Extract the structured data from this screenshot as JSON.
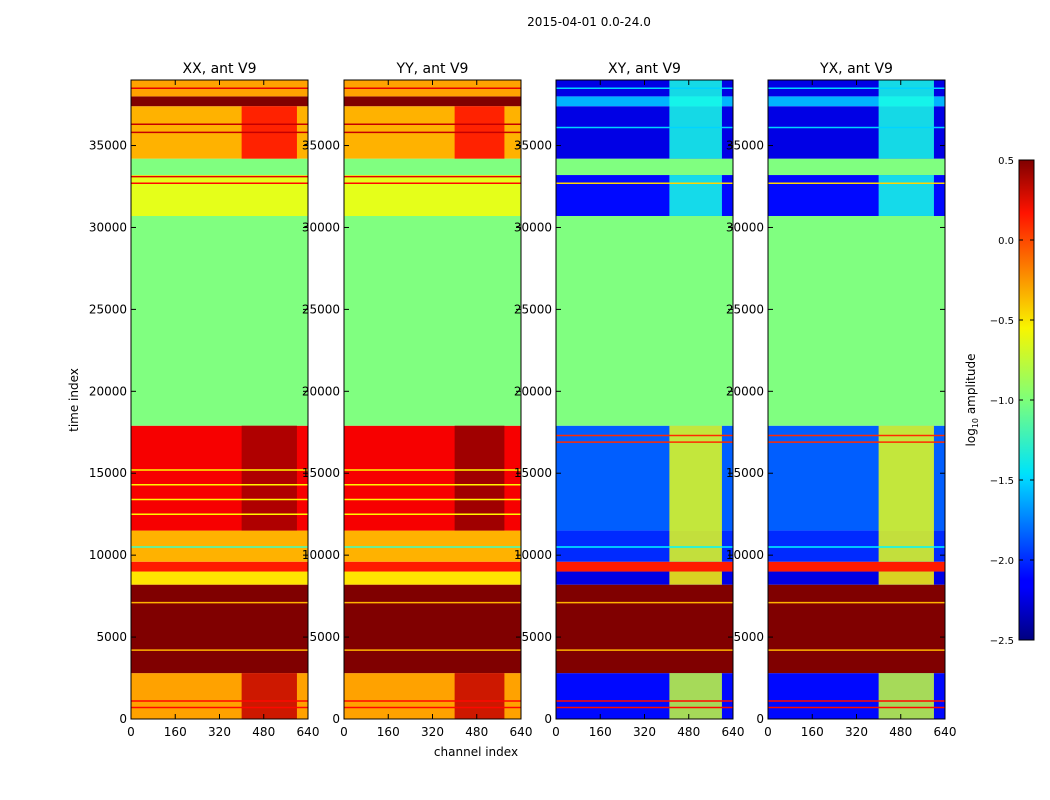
{
  "figure": {
    "suptitle": "2015-04-01 0.0-24.0"
  },
  "chart_data": {
    "type": "heatmap",
    "xlabel": "channel index",
    "ylabel": "time index",
    "xlim": [
      0,
      640
    ],
    "ylim": [
      0,
      39000
    ],
    "xticks": [
      0,
      160,
      320,
      480,
      640
    ],
    "yticks": [
      0,
      5000,
      10000,
      15000,
      20000,
      25000,
      30000,
      35000
    ],
    "colormap": "jet",
    "colorbar": {
      "label_main": "log",
      "label_sub": "10",
      "label_rest": " amplitude",
      "range": [
        -2.5,
        0.5
      ],
      "ticks": [
        0.5,
        0.0,
        -0.5,
        -1.0,
        -1.5,
        -2.0,
        -2.5
      ],
      "tick_labels": [
        "0.5",
        "0.0",
        "−0.5",
        "−1.0",
        "−1.5",
        "−2.0",
        "−2.5"
      ]
    },
    "panels": [
      {
        "title": "XX, ant V9",
        "bands": [
          {
            "t0": 0,
            "t1": 2800,
            "value": -0.35
          },
          {
            "t0": 2800,
            "t1": 8200,
            "value": 0.5
          },
          {
            "t0": 8200,
            "t1": 9000,
            "value": -0.55
          },
          {
            "t0": 9000,
            "t1": 9600,
            "value": 0.05
          },
          {
            "t0": 9600,
            "t1": 11500,
            "value": -0.4
          },
          {
            "t0": 11500,
            "t1": 17900,
            "value": 0.15
          },
          {
            "t0": 17900,
            "t1": 30700,
            "value": -1.0
          },
          {
            "t0": 30700,
            "t1": 33200,
            "value": -0.7
          },
          {
            "t0": 33200,
            "t1": 34200,
            "value": -1.0
          },
          {
            "t0": 34200,
            "t1": 37400,
            "value": -0.4
          },
          {
            "t0": 37400,
            "t1": 38000,
            "value": 0.5
          },
          {
            "t0": 38000,
            "t1": 39000,
            "value": -0.35
          }
        ],
        "hot_channels": [
          {
            "c0": 400,
            "c1": 600,
            "value": 0.3,
            "t0": 0,
            "t1": 2800
          },
          {
            "c0": 400,
            "c1": 600,
            "value": 0.4,
            "t0": 11500,
            "t1": 17900
          },
          {
            "c0": 400,
            "c1": 600,
            "value": 0.1,
            "t0": 34200,
            "t1": 37400
          }
        ],
        "lines": [
          {
            "t": 700,
            "value": 0.1
          },
          {
            "t": 1100,
            "value": 0.1
          },
          {
            "t": 4200,
            "value": -0.4
          },
          {
            "t": 7100,
            "value": -0.4
          },
          {
            "t": 10500,
            "value": -1.2
          },
          {
            "t": 12500,
            "value": -0.6
          },
          {
            "t": 13400,
            "value": -0.6
          },
          {
            "t": 14300,
            "value": -0.6
          },
          {
            "t": 15200,
            "value": -0.6
          },
          {
            "t": 32700,
            "value": 0.1
          },
          {
            "t": 33100,
            "value": 0.2
          },
          {
            "t": 35800,
            "value": 0.3
          },
          {
            "t": 36300,
            "value": 0.3
          },
          {
            "t": 38500,
            "value": 0.2
          }
        ]
      },
      {
        "title": "YY, ant V9",
        "bands": [
          {
            "t0": 0,
            "t1": 2800,
            "value": -0.35
          },
          {
            "t0": 2800,
            "t1": 8200,
            "value": 0.5
          },
          {
            "t0": 8200,
            "t1": 9000,
            "value": -0.55
          },
          {
            "t0": 9000,
            "t1": 9600,
            "value": 0.05
          },
          {
            "t0": 9600,
            "t1": 11500,
            "value": -0.4
          },
          {
            "t0": 11500,
            "t1": 17900,
            "value": 0.15
          },
          {
            "t0": 17900,
            "t1": 30700,
            "value": -1.0
          },
          {
            "t0": 30700,
            "t1": 33200,
            "value": -0.7
          },
          {
            "t0": 33200,
            "t1": 34200,
            "value": -1.0
          },
          {
            "t0": 34200,
            "t1": 37400,
            "value": -0.4
          },
          {
            "t0": 37400,
            "t1": 38000,
            "value": 0.5
          },
          {
            "t0": 38000,
            "t1": 39000,
            "value": -0.35
          }
        ],
        "hot_channels": [
          {
            "c0": 400,
            "c1": 580,
            "value": 0.3,
            "t0": 0,
            "t1": 2800
          },
          {
            "c0": 400,
            "c1": 580,
            "value": 0.45,
            "t0": 11500,
            "t1": 17900
          },
          {
            "c0": 400,
            "c1": 580,
            "value": 0.1,
            "t0": 34200,
            "t1": 37400
          }
        ],
        "lines": [
          {
            "t": 700,
            "value": 0.1
          },
          {
            "t": 1100,
            "value": 0.1
          },
          {
            "t": 4200,
            "value": -0.4
          },
          {
            "t": 7100,
            "value": -0.4
          },
          {
            "t": 10500,
            "value": -1.2
          },
          {
            "t": 12500,
            "value": -0.6
          },
          {
            "t": 13400,
            "value": -0.6
          },
          {
            "t": 14300,
            "value": -0.6
          },
          {
            "t": 15200,
            "value": -0.6
          },
          {
            "t": 32700,
            "value": 0.1
          },
          {
            "t": 33100,
            "value": 0.2
          },
          {
            "t": 35800,
            "value": 0.3
          },
          {
            "t": 36300,
            "value": 0.3
          },
          {
            "t": 38500,
            "value": 0.2
          }
        ]
      },
      {
        "title": "XY, ant V9",
        "bands": [
          {
            "t0": 0,
            "t1": 2800,
            "value": -2.1
          },
          {
            "t0": 2800,
            "t1": 8200,
            "value": 0.5
          },
          {
            "t0": 8200,
            "t1": 9000,
            "value": -2.2
          },
          {
            "t0": 9000,
            "t1": 9600,
            "value": 0.05
          },
          {
            "t0": 9600,
            "t1": 11500,
            "value": -2.0
          },
          {
            "t0": 11500,
            "t1": 17900,
            "value": -1.85
          },
          {
            "t0": 17900,
            "t1": 30700,
            "value": -1.0
          },
          {
            "t0": 30700,
            "t1": 33200,
            "value": -2.1
          },
          {
            "t0": 33200,
            "t1": 34200,
            "value": -1.0
          },
          {
            "t0": 34200,
            "t1": 37400,
            "value": -2.2
          },
          {
            "t0": 37400,
            "t1": 38000,
            "value": -1.6
          },
          {
            "t0": 38000,
            "t1": 39000,
            "value": -2.2
          }
        ],
        "hot_channels": [
          {
            "c0": 410,
            "c1": 600,
            "value": -0.8,
            "t0": 0,
            "t1": 2800
          },
          {
            "c0": 410,
            "c1": 600,
            "value": -0.6,
            "t0": 8200,
            "t1": 9000
          },
          {
            "c0": 410,
            "c1": 600,
            "value": -0.7,
            "t0": 9600,
            "t1": 17900
          },
          {
            "c0": 410,
            "c1": 600,
            "value": -1.3,
            "t0": 30700,
            "t1": 33200
          },
          {
            "c0": 410,
            "c1": 600,
            "value": -1.3,
            "t0": 34200,
            "t1": 39000
          }
        ],
        "lines": [
          {
            "t": 700,
            "value": 0.1
          },
          {
            "t": 1100,
            "value": 0.1
          },
          {
            "t": 4200,
            "value": -0.4
          },
          {
            "t": 7100,
            "value": -0.4
          },
          {
            "t": 10500,
            "value": -1.4
          },
          {
            "t": 16900,
            "value": 0.0
          },
          {
            "t": 17300,
            "value": 0.0
          },
          {
            "t": 32700,
            "value": -0.5
          },
          {
            "t": 36100,
            "value": -1.5
          },
          {
            "t": 38500,
            "value": -1.5
          }
        ]
      },
      {
        "title": "YX, ant V9",
        "bands": [
          {
            "t0": 0,
            "t1": 2800,
            "value": -2.1
          },
          {
            "t0": 2800,
            "t1": 8200,
            "value": 0.5
          },
          {
            "t0": 8200,
            "t1": 9000,
            "value": -2.2
          },
          {
            "t0": 9000,
            "t1": 9600,
            "value": 0.05
          },
          {
            "t0": 9600,
            "t1": 11500,
            "value": -2.0
          },
          {
            "t0": 11500,
            "t1": 17900,
            "value": -1.85
          },
          {
            "t0": 17900,
            "t1": 30700,
            "value": -1.0
          },
          {
            "t0": 30700,
            "t1": 33200,
            "value": -2.1
          },
          {
            "t0": 33200,
            "t1": 34200,
            "value": -1.0
          },
          {
            "t0": 34200,
            "t1": 37400,
            "value": -2.2
          },
          {
            "t0": 37400,
            "t1": 38000,
            "value": -1.6
          },
          {
            "t0": 38000,
            "t1": 39000,
            "value": -2.2
          }
        ],
        "hot_channels": [
          {
            "c0": 400,
            "c1": 600,
            "value": -0.8,
            "t0": 0,
            "t1": 2800
          },
          {
            "c0": 400,
            "c1": 600,
            "value": -0.6,
            "t0": 8200,
            "t1": 9000
          },
          {
            "c0": 400,
            "c1": 600,
            "value": -0.7,
            "t0": 9600,
            "t1": 17900
          },
          {
            "c0": 400,
            "c1": 600,
            "value": -1.3,
            "t0": 30700,
            "t1": 33200
          },
          {
            "c0": 400,
            "c1": 600,
            "value": -1.3,
            "t0": 34200,
            "t1": 39000
          }
        ],
        "lines": [
          {
            "t": 700,
            "value": 0.1
          },
          {
            "t": 1100,
            "value": 0.1
          },
          {
            "t": 4200,
            "value": -0.4
          },
          {
            "t": 7100,
            "value": -0.4
          },
          {
            "t": 10500,
            "value": -1.4
          },
          {
            "t": 16900,
            "value": 0.0
          },
          {
            "t": 17300,
            "value": 0.0
          },
          {
            "t": 32700,
            "value": -0.5
          },
          {
            "t": 36100,
            "value": -1.5
          },
          {
            "t": 38500,
            "value": -1.5
          }
        ]
      }
    ]
  }
}
